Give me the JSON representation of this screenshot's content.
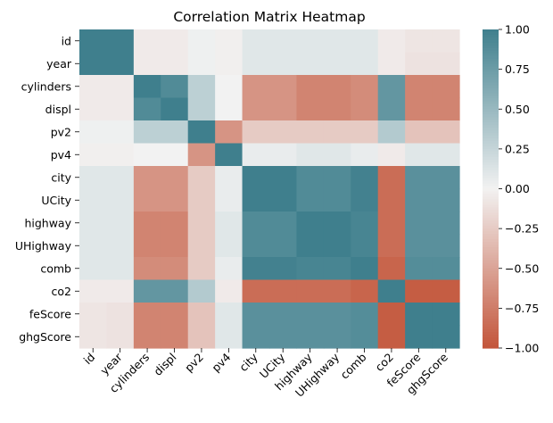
{
  "chart_data": {
    "type": "heatmap",
    "title": "Correlation Matrix Heatmap",
    "variables": [
      "id",
      "year",
      "cylinders",
      "displ",
      "pv2",
      "pv4",
      "city",
      "UCity",
      "highway",
      "UHighway",
      "comb",
      "co2",
      "feScore",
      "ghgScore"
    ],
    "matrix": [
      [
        1.0,
        1.0,
        -0.05,
        -0.05,
        0.02,
        -0.02,
        0.1,
        0.1,
        0.1,
        0.1,
        0.1,
        -0.05,
        -0.08,
        -0.08
      ],
      [
        1.0,
        1.0,
        -0.05,
        -0.05,
        0.02,
        -0.02,
        0.1,
        0.1,
        0.1,
        0.1,
        0.1,
        -0.05,
        -0.1,
        -0.1
      ],
      [
        -0.05,
        -0.05,
        1.0,
        0.9,
        0.3,
        0.0,
        -0.6,
        -0.6,
        -0.7,
        -0.7,
        -0.65,
        0.8,
        -0.7,
        -0.7
      ],
      [
        -0.05,
        -0.05,
        0.9,
        1.0,
        0.3,
        0.0,
        -0.6,
        -0.6,
        -0.7,
        -0.7,
        -0.65,
        0.8,
        -0.7,
        -0.7
      ],
      [
        0.02,
        0.02,
        0.3,
        0.3,
        1.0,
        -0.6,
        -0.25,
        -0.25,
        -0.25,
        -0.25,
        -0.25,
        0.35,
        -0.3,
        -0.3
      ],
      [
        -0.02,
        -0.02,
        0.0,
        0.0,
        -0.6,
        1.0,
        0.05,
        0.05,
        0.1,
        0.1,
        0.05,
        -0.05,
        0.1,
        0.1
      ],
      [
        0.1,
        0.1,
        -0.6,
        -0.6,
        -0.25,
        0.05,
        1.0,
        1.0,
        0.9,
        0.9,
        0.98,
        -0.85,
        0.85,
        0.85
      ],
      [
        0.1,
        0.1,
        -0.6,
        -0.6,
        -0.25,
        0.05,
        1.0,
        1.0,
        0.9,
        0.9,
        0.98,
        -0.85,
        0.85,
        0.85
      ],
      [
        0.1,
        0.1,
        -0.7,
        -0.7,
        -0.25,
        0.1,
        0.9,
        0.9,
        1.0,
        1.0,
        0.95,
        -0.85,
        0.85,
        0.85
      ],
      [
        0.1,
        0.1,
        -0.7,
        -0.7,
        -0.25,
        0.1,
        0.9,
        0.9,
        1.0,
        1.0,
        0.95,
        -0.85,
        0.85,
        0.85
      ],
      [
        0.1,
        0.1,
        -0.65,
        -0.65,
        -0.25,
        0.05,
        0.98,
        0.98,
        0.95,
        0.95,
        1.0,
        -0.9,
        0.88,
        0.88
      ],
      [
        -0.05,
        -0.05,
        0.8,
        0.8,
        0.35,
        -0.05,
        -0.85,
        -0.85,
        -0.85,
        -0.85,
        -0.9,
        1.0,
        -0.95,
        -0.95
      ],
      [
        -0.08,
        -0.1,
        -0.7,
        -0.7,
        -0.3,
        0.1,
        0.85,
        0.85,
        0.85,
        0.85,
        0.88,
        -0.95,
        1.0,
        1.0
      ],
      [
        -0.08,
        -0.1,
        -0.7,
        -0.7,
        -0.3,
        0.1,
        0.85,
        0.85,
        0.85,
        0.85,
        0.88,
        -0.95,
        1.0,
        1.0
      ]
    ],
    "value_range": [
      -1.0,
      1.0
    ],
    "colorbar_ticks": [
      "1.00",
      "0.75",
      "0.50",
      "0.25",
      "0.00",
      "−0.25",
      "−0.50",
      "−0.75",
      "−1.00"
    ],
    "colorbar_tick_values": [
      1.0,
      0.75,
      0.5,
      0.25,
      0.0,
      -0.25,
      -0.5,
      -0.75,
      -1.0
    ],
    "colors": {
      "negative": "#c3553a",
      "center": "#f2f2f2",
      "positive": "#3f7f8d"
    },
    "grid": false,
    "legend": "colorbar-right"
  }
}
